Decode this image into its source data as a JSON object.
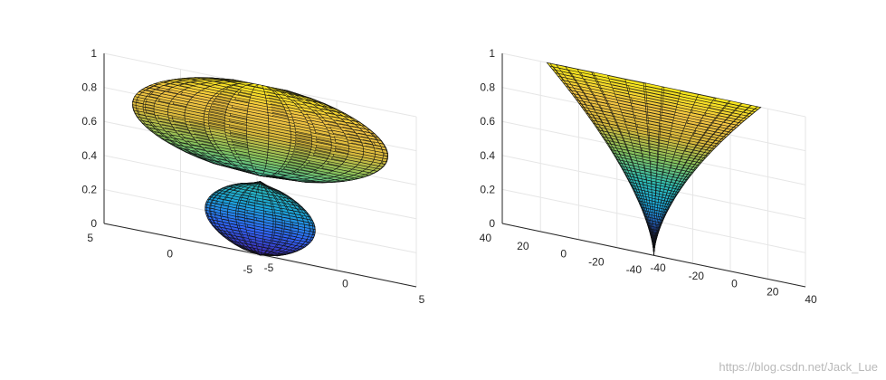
{
  "watermark": "https://blog.csdn.net/Jack_Lue",
  "colormap": [
    "#3e26a8",
    "#2f66f6",
    "#1ca6db",
    "#2fbcb0",
    "#86c35e",
    "#d9b93c",
    "#f4c543",
    "#f7e81a"
  ],
  "chart_data": [
    {
      "type": "surface",
      "view": "3d",
      "title": "",
      "xlabel": "",
      "ylabel": "",
      "zlabel": "",
      "xlim": [
        -5,
        5
      ],
      "ylim": [
        -5,
        5
      ],
      "zlim": [
        0,
        1
      ],
      "xticks": [
        "-5",
        "0",
        "5"
      ],
      "yticks": [
        "-5",
        "0",
        "5"
      ],
      "zticks": [
        "0",
        "0.2",
        "0.4",
        "0.6",
        "0.8",
        "1"
      ],
      "grid": true,
      "surface": "surface of revolution: lower bulb (radius ≈ 2.5, z 0 to 0.42) topped by a wide disc (radius ≈ 5.8, z 0.47 to 1)"
    },
    {
      "type": "surface",
      "view": "3d",
      "title": "",
      "xlabel": "",
      "ylabel": "",
      "zlabel": "",
      "xlim": [
        -40,
        40
      ],
      "ylim": [
        -40,
        40
      ],
      "zlim": [
        0,
        1
      ],
      "xticks": [
        "-40",
        "-20",
        "0",
        "20",
        "40"
      ],
      "yticks": [
        "-40",
        "-20",
        "0",
        "20",
        "40"
      ],
      "zticks": [
        "0",
        "0.2",
        "0.4",
        "0.6",
        "0.8",
        "1"
      ],
      "grid": true,
      "surface": "funnel (surface of revolution): radius ≈ 40 at z = 1 narrowing to a point at z = 0"
    }
  ]
}
